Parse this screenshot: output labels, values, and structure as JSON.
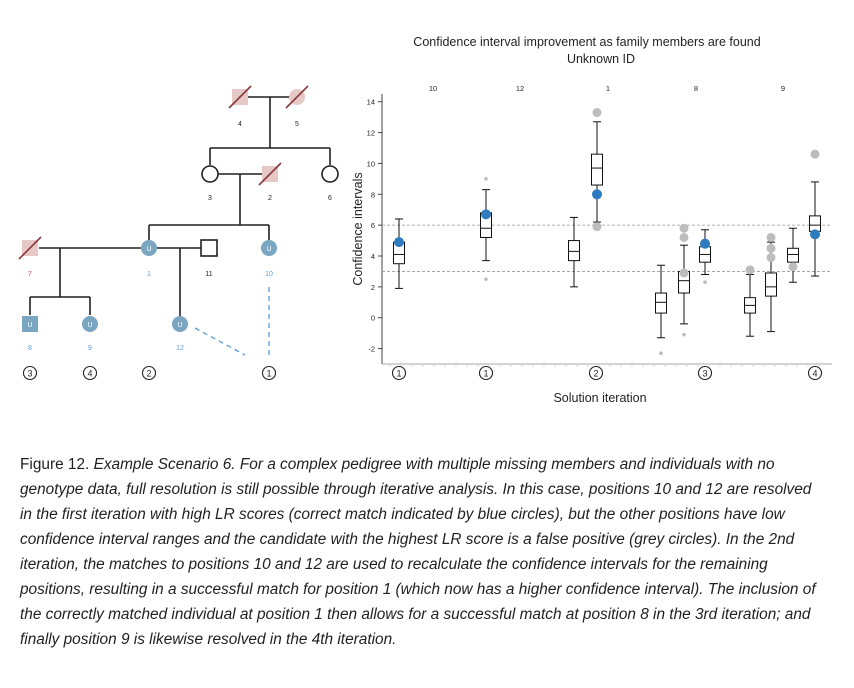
{
  "pedigree": {
    "nodes": [
      {
        "id": "4",
        "label": "4",
        "kind": "deceased-square",
        "labelColor": "#231f20"
      },
      {
        "id": "5",
        "label": "5",
        "kind": "deceased-circle",
        "labelColor": "#231f20"
      },
      {
        "id": "3",
        "label": "3",
        "kind": "circle",
        "labelColor": "#231f20"
      },
      {
        "id": "2",
        "label": "2",
        "kind": "deceased-square",
        "labelColor": "#231f20"
      },
      {
        "id": "6",
        "label": "6",
        "kind": "circle",
        "labelColor": "#231f20"
      },
      {
        "id": "7",
        "label": "7",
        "kind": "deceased-square",
        "labelColor": "#c0504d"
      },
      {
        "id": "1",
        "label": "1",
        "kind": "unknown-circle",
        "symbol": "U",
        "labelColor": "#5b9bd5"
      },
      {
        "id": "11",
        "label": "11",
        "kind": "square",
        "labelColor": "#231f20"
      },
      {
        "id": "10",
        "label": "10",
        "kind": "unknown-circle",
        "symbol": "U",
        "labelColor": "#5b9bd5"
      },
      {
        "id": "8",
        "label": "8",
        "kind": "unknown-square",
        "symbol": "U",
        "labelColor": "#5b9bd5"
      },
      {
        "id": "9",
        "label": "9",
        "kind": "unknown-circle",
        "symbol": "U",
        "labelColor": "#5b9bd5"
      },
      {
        "id": "12",
        "label": "12",
        "kind": "unknown-circle",
        "symbol": "U",
        "labelColor": "#5b9bd5"
      }
    ],
    "iteration_markers": [
      "3",
      "4",
      "2",
      "1"
    ]
  },
  "chart_data": {
    "type": "box",
    "title": "Confidence interval improvement as family members are found",
    "subtitle": "Unknown ID",
    "xlabel": "Solution iteration",
    "ylabel": "Confidence intervals",
    "ylim": [
      -3,
      14.5
    ],
    "yticks": [
      -2,
      0,
      2,
      4,
      6,
      8,
      10,
      12,
      14
    ],
    "reference_lines": [
      6,
      3
    ],
    "grid": false,
    "groups": [
      {
        "label": "10",
        "iteration": "1",
        "boxes": [
          {
            "min": 1.9,
            "q1": 3.5,
            "median": 4.1,
            "q3": 4.9,
            "max": 6.4
          }
        ],
        "blue": [
          4.9
        ],
        "grey": []
      },
      {
        "label": "12",
        "iteration": "1",
        "boxes": [
          {
            "min": 3.7,
            "q1": 5.2,
            "median": 5.8,
            "q3": 6.8,
            "max": 8.3
          }
        ],
        "blue": [
          6.7
        ],
        "grey": [
          9.0,
          2.5
        ]
      },
      {
        "label": "1",
        "iteration": "2",
        "boxes": [
          {
            "min": 2.0,
            "q1": 3.7,
            "median": 4.3,
            "q3": 5.0,
            "max": 6.5
          },
          {
            "min": 6.2,
            "q1": 8.6,
            "median": 9.7,
            "q3": 10.6,
            "max": 12.7
          }
        ],
        "blue": [
          8.0
        ],
        "grey": [
          13.3,
          5.9
        ]
      },
      {
        "label": "8",
        "iteration": "3",
        "boxes": [
          {
            "min": -1.3,
            "q1": 0.3,
            "median": 1.0,
            "q3": 1.6,
            "max": 3.4
          },
          {
            "min": -0.4,
            "q1": 1.6,
            "median": 2.4,
            "q3": 3.0,
            "max": 4.7
          },
          {
            "min": 2.8,
            "q1": 3.6,
            "median": 4.1,
            "q3": 4.6,
            "max": 5.7
          }
        ],
        "blue": [
          4.8
        ],
        "grey": [
          5.2,
          2.9,
          5.8,
          -2.3,
          -1.1,
          2.3
        ]
      },
      {
        "label": "9",
        "iteration": "4",
        "boxes": [
          {
            "min": -1.2,
            "q1": 0.3,
            "median": 0.8,
            "q3": 1.3,
            "max": 2.8
          },
          {
            "min": -0.9,
            "q1": 1.4,
            "median": 2.0,
            "q3": 2.9,
            "max": 4.9
          },
          {
            "min": 2.3,
            "q1": 3.6,
            "median": 4.1,
            "q3": 4.5,
            "max": 5.8
          },
          {
            "min": 2.7,
            "q1": 5.6,
            "median": 6.0,
            "q3": 6.6,
            "max": 8.8
          }
        ],
        "blue": [
          5.4
        ],
        "grey": [
          3.1,
          3.9,
          4.5,
          5.2,
          3.3,
          10.6
        ]
      }
    ]
  },
  "caption": {
    "lead": "Figure 12.",
    "body": "Example Scenario 6. For a complex pedigree with multiple missing members and individuals with no genotype data, full resolution is still possible through iterative analysis. In this case, positions 10 and 12 are resolved in the first iteration with high LR scores (correct match indicated by blue circles), but the other positions have low confidence interval ranges and the candidate with the highest LR score is a false positive (grey circles). In the 2nd iteration, the matches to positions 10 and 12 are used to recalculate the confidence intervals for the remaining positions, resulting in a successful match for position 1 (which now has a higher confidence interval). The inclusion of the correctly matched individual at position 1 then allows for a successful match at position 8 in the 3rd iteration; and finally position 9 is likewise resolved in the 4th iteration."
  },
  "colors": {
    "unknown": "#7aa6c2",
    "deceased_fill": "#e6c9c7",
    "deceased_slash": "#8b3a3a",
    "blue_dot": "#2f7bbf",
    "grey_dot": "#bdbdbd",
    "ref_line": "#9a9a9a"
  }
}
